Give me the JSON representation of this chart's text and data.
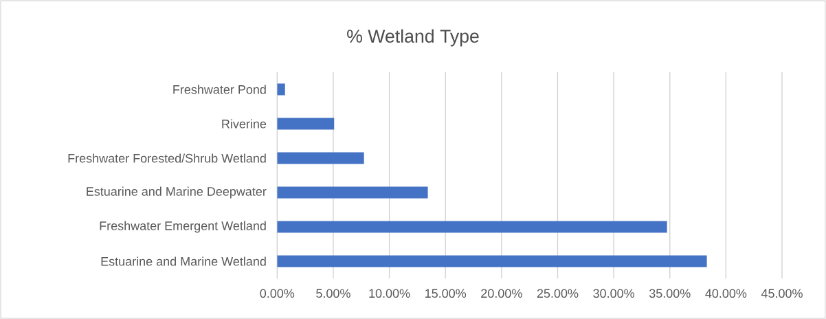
{
  "chart_data": {
    "type": "bar",
    "orientation": "horizontal",
    "title": "% Wetland Type",
    "categories": [
      "Freshwater Pond",
      "Riverine",
      "Freshwater Forested/Shrub Wetland",
      "Estuarine and Marine Deepwater",
      "Freshwater Emergent Wetland",
      "Estuarine and Marine Wetland"
    ],
    "values": [
      0.7,
      5.08,
      7.74,
      13.43,
      34.75,
      38.3
    ],
    "color": "#4472c4",
    "xlim": [
      0,
      45
    ],
    "xticks": [
      {
        "value": 0,
        "label": "0.00%"
      },
      {
        "value": 5,
        "label": "5.00%"
      },
      {
        "value": 10,
        "label": "10.00%"
      },
      {
        "value": 15,
        "label": "15.00%"
      },
      {
        "value": 20,
        "label": "20.00%"
      },
      {
        "value": 25,
        "label": "25.00%"
      },
      {
        "value": 30,
        "label": "30.00%"
      },
      {
        "value": 35,
        "label": "35.00%"
      },
      {
        "value": 40,
        "label": "40.00%"
      },
      {
        "value": 45,
        "label": "45.00%"
      }
    ],
    "grid": "x"
  }
}
